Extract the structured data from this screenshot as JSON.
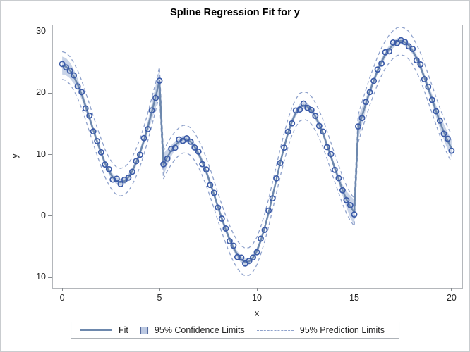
{
  "title": "Spline Regression Fit for y",
  "legend": {
    "items": [
      {
        "label": "Fit",
        "swatch": "solid-line-icon"
      },
      {
        "label": "95% Confidence Limits",
        "swatch": "filled-square-icon"
      },
      {
        "label": "95% Prediction Limits",
        "swatch": "dashed-line-icon"
      }
    ]
  },
  "colors": {
    "marker": "#3b5ba8",
    "fit_line": "#6d88ad",
    "confidence_band": "#bcc9e2",
    "prediction_line": "#8fa2cc",
    "frame": "#b4b7bb",
    "tick": "#85898d",
    "text": "#262626"
  },
  "chart_data": {
    "type": "scatter",
    "title": "Spline Regression Fit for y",
    "xlabel": "x",
    "ylabel": "y",
    "x_ticks": [
      0,
      5,
      10,
      15,
      20
    ],
    "y_ticks": [
      -10,
      0,
      10,
      20,
      30
    ],
    "xlim": [
      -0.51,
      20.51
    ],
    "ylim": [
      -11.6,
      31.15
    ],
    "grid": false,
    "legend_position": "bottom-center",
    "x": [
      0,
      0.2,
      0.4,
      0.6,
      0.8,
      1,
      1.2,
      1.4,
      1.6,
      1.8,
      2,
      2.2,
      2.4,
      2.6,
      2.8,
      3,
      3.2,
      3.4,
      3.6,
      3.8,
      4,
      4.2,
      4.4,
      4.6,
      4.8,
      5,
      5.2,
      5.4,
      5.6,
      5.8,
      6,
      6.2,
      6.4,
      6.6,
      6.8,
      7,
      7.2,
      7.4,
      7.6,
      7.8,
      8,
      8.2,
      8.4,
      8.6,
      8.8,
      9,
      9.2,
      9.4,
      9.6,
      9.8,
      10,
      10.2,
      10.4,
      10.6,
      10.8,
      11,
      11.2,
      11.4,
      11.6,
      11.8,
      12,
      12.2,
      12.4,
      12.6,
      12.8,
      13,
      13.2,
      13.4,
      13.6,
      13.8,
      14,
      14.2,
      14.4,
      14.6,
      14.8,
      15,
      15.2,
      15.4,
      15.6,
      15.8,
      16,
      16.2,
      16.4,
      16.6,
      16.8,
      17,
      17.2,
      17.4,
      17.6,
      17.8,
      18,
      18.2,
      18.4,
      18.6,
      18.8,
      19,
      19.2,
      19.4,
      19.6,
      19.8,
      20
    ],
    "fit": [
      24.5,
      24.3,
      23.7,
      22.7,
      21.4,
      19.8,
      17.9,
      16.0,
      14.0,
      12.1,
      10.3,
      8.6,
      7.3,
      6.3,
      5.7,
      5.5,
      5.7,
      6.3,
      7.3,
      8.7,
      10.3,
      12.3,
      14.5,
      16.9,
      19.4,
      22.0,
      8.3,
      9.6,
      10.6,
      11.5,
      12.1,
      12.5,
      12.5,
      12.1,
      11.3,
      10.2,
      8.8,
      7.2,
      5.4,
      3.5,
      1.5,
      -0.4,
      -2.2,
      -3.8,
      -5.2,
      -6.3,
      -7.1,
      -7.5,
      -7.4,
      -6.8,
      -5.7,
      -4.0,
      -1.9,
      0.5,
      3.2,
      5.9,
      8.7,
      11.2,
      13.5,
      15.4,
      16.8,
      17.7,
      18.0,
      17.8,
      17.2,
      16.2,
      14.9,
      13.4,
      11.6,
      9.7,
      7.8,
      6.0,
      4.2,
      2.7,
      1.5,
      0.6,
      14.2,
      16.3,
      18.3,
      20.3,
      22.0,
      23.7,
      25.1,
      26.3,
      27.2,
      27.9,
      28.4,
      28.5,
      28.3,
      27.8,
      26.9,
      25.7,
      24.3,
      22.6,
      20.8,
      19.0,
      17.1,
      15.3,
      13.7,
      12.2,
      11.0
    ],
    "scatter_jitter": {
      "amp": 0.38,
      "freq": 2.74,
      "phase": 0.7
    },
    "prediction_offset": 2.25,
    "confidence_halfwidth": {
      "base": 0.55,
      "bumps": [
        [
          0,
          0.9,
          0.8
        ],
        [
          5,
          1.5,
          0.25
        ],
        [
          15,
          1.5,
          0.25
        ],
        [
          20,
          0.9,
          0.8
        ]
      ]
    },
    "jump_x": [
      5,
      15
    ]
  }
}
